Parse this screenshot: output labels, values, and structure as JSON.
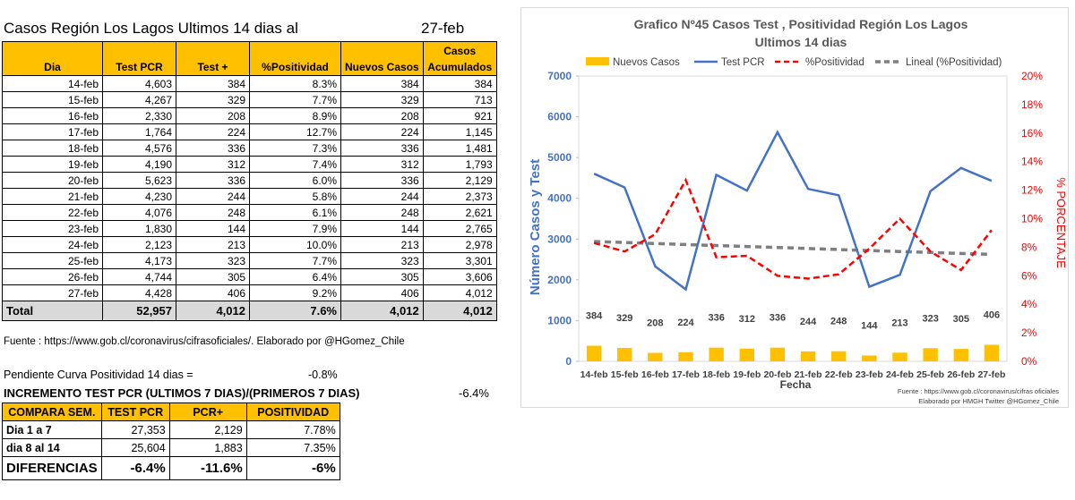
{
  "header": {
    "title": "Casos Región Los Lagos  Ultimos 14 dias al",
    "date": "27-feb"
  },
  "table": {
    "columns": [
      "Dia",
      "Test PCR",
      "Test +",
      "%Positividad",
      "Nuevos Casos",
      "Casos Acumulados"
    ],
    "col6_top": "Casos",
    "col6_bottom": "Acumulados",
    "rows": [
      [
        "14-feb",
        "4,603",
        "384",
        "8.3%",
        "384",
        "384"
      ],
      [
        "15-feb",
        "4,267",
        "329",
        "7.7%",
        "329",
        "713"
      ],
      [
        "16-feb",
        "2,330",
        "208",
        "8.9%",
        "208",
        "921"
      ],
      [
        "17-feb",
        "1,764",
        "224",
        "12.7%",
        "224",
        "1,145"
      ],
      [
        "18-feb",
        "4,576",
        "336",
        "7.3%",
        "336",
        "1,481"
      ],
      [
        "19-feb",
        "4,190",
        "312",
        "7.4%",
        "312",
        "1,793"
      ],
      [
        "20-feb",
        "5,623",
        "336",
        "6.0%",
        "336",
        "2,129"
      ],
      [
        "21-feb",
        "4,230",
        "244",
        "5.8%",
        "244",
        "2,373"
      ],
      [
        "22-feb",
        "4,076",
        "248",
        "6.1%",
        "248",
        "2,621"
      ],
      [
        "23-feb",
        "1,830",
        "144",
        "7.9%",
        "144",
        "2,765"
      ],
      [
        "24-feb",
        "2,123",
        "213",
        "10.0%",
        "213",
        "2,978"
      ],
      [
        "25-feb",
        "4,173",
        "323",
        "7.7%",
        "323",
        "3,301"
      ],
      [
        "26-feb",
        "4,744",
        "305",
        "6.4%",
        "305",
        "3,606"
      ],
      [
        "27-feb",
        "4,428",
        "406",
        "9.2%",
        "406",
        "4,012"
      ]
    ],
    "total": [
      "Total",
      "52,957",
      "4,012",
      "7.6%",
      "4,012",
      "4,012"
    ]
  },
  "source_line": "Fuente : https://www.gob.cl/coronavirus/cifrasoficiales/.     Elaborado por  @HGomez_Chile",
  "slope": {
    "label": "Pendiente Curva Positividad 14 dias =",
    "value": "-0.8%"
  },
  "increment": {
    "label": "INCREMENTO TEST PCR (ULTIMOS 7 DIAS)/(PRIMEROS 7 DIAS)",
    "value": "-6.4%"
  },
  "compare": {
    "headers": [
      "COMPARA SEM.",
      "TEST PCR",
      "PCR+",
      "POSITIVIDAD"
    ],
    "rows": [
      [
        "Dia 1 a 7",
        "27,353",
        "2,129",
        "7.78%"
      ],
      [
        "dia 8 al 14",
        "25,604",
        "1,883",
        "7.35%"
      ]
    ],
    "diff": [
      "DIFERENCIAS",
      "-6.4%",
      "-11.6%",
      "-6%"
    ]
  },
  "chart_data": {
    "type": "bar+line",
    "title": "Grafico Nº45 Casos Test  , Positividad Región Los Lagos",
    "subtitle": "Ultimos 14 dias",
    "categories": [
      "14-feb",
      "15-feb",
      "16-feb",
      "17-feb",
      "18-feb",
      "19-feb",
      "20-feb",
      "21-feb",
      "22-feb",
      "23-feb",
      "24-feb",
      "25-feb",
      "26-feb",
      "27-feb"
    ],
    "series": [
      {
        "name": "Nuevos Casos",
        "type": "bar",
        "axis": "left",
        "values": [
          384,
          329,
          208,
          224,
          336,
          312,
          336,
          244,
          248,
          144,
          213,
          323,
          305,
          406
        ]
      },
      {
        "name": "Test PCR",
        "type": "line",
        "axis": "left",
        "values": [
          4603,
          4267,
          2330,
          1764,
          4576,
          4190,
          5623,
          4230,
          4076,
          1830,
          2123,
          4173,
          4744,
          4428
        ]
      },
      {
        "name": "%Positividad",
        "type": "line",
        "axis": "right",
        "values": [
          8.3,
          7.7,
          8.9,
          12.7,
          7.3,
          7.4,
          6.0,
          5.8,
          6.1,
          7.9,
          10.0,
          7.7,
          6.4,
          9.2
        ]
      },
      {
        "name": "Lineal (%Positividad)",
        "type": "trend",
        "axis": "right",
        "values": [
          8.4,
          8.33,
          8.26,
          8.19,
          8.12,
          8.05,
          7.98,
          7.91,
          7.84,
          7.77,
          7.7,
          7.63,
          7.56,
          7.5
        ]
      }
    ],
    "bar_labels": [
      "384",
      "329",
      "208",
      "224",
      "336",
      "312",
      "336",
      "244",
      "248",
      "144",
      "213",
      "323",
      "305",
      "406"
    ],
    "xlabel": "Fecha",
    "ylabel": "Número Casos y Test",
    "y2label": "% PORCENTAJE",
    "ylim": [
      0,
      7000
    ],
    "yticks": [
      "0",
      "1000",
      "2000",
      "3000",
      "4000",
      "5000",
      "6000",
      "7000"
    ],
    "y2lim": [
      0,
      20
    ],
    "y2ticks": [
      "0%",
      "2%",
      "4%",
      "6%",
      "8%",
      "10%",
      "12%",
      "14%",
      "16%",
      "18%",
      "20%"
    ],
    "legend": [
      "Nuevos Casos",
      "Test PCR",
      "%Positividad",
      "Lineal (%Positividad)"
    ],
    "note1": "Fuente  : https://www.gob.cl/coronavirus/cifras oficiales",
    "note2": "Elaborado por HMGH  Twitter  @HGomez_Chile",
    "colors": {
      "bars": "#ffc000",
      "pcr": "#4472c4",
      "pos": "#ff0000",
      "trend": "#7f7f7f",
      "left_axis": "#4472c4",
      "right_axis": "#ff0000"
    }
  }
}
